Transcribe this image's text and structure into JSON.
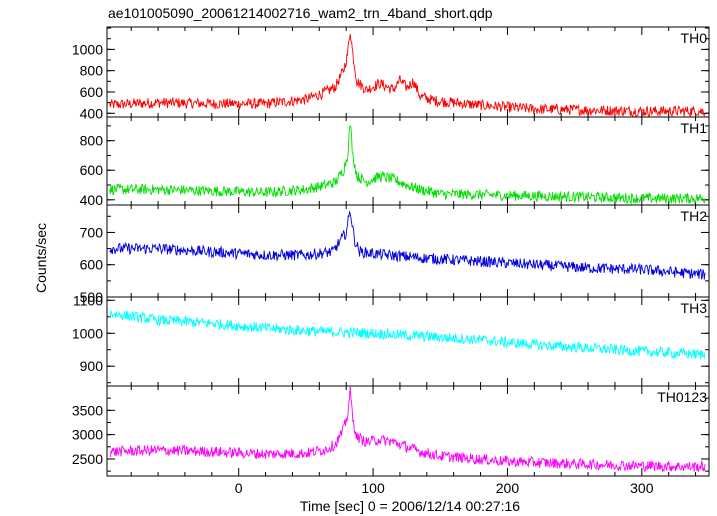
{
  "figure": {
    "title": "ae101005090_20061214002716_wam2_trn_4band_short.qdp",
    "xlabel": "Time [sec] 0 = 2006/12/14 00:27:16",
    "ylabel": "Counts/sec"
  },
  "chart_data": [
    {
      "type": "line",
      "panel_label": "TH0",
      "color": "#ff0000",
      "xlim": [
        -98,
        350
      ],
      "ylim": [
        365,
        1210
      ],
      "yticks": [
        400,
        600,
        800,
        1000
      ],
      "grid": false,
      "series": [
        {
          "x": [
            -95,
            -60,
            -20,
            20,
            50,
            65,
            72,
            78,
            81,
            83,
            85,
            88,
            95,
            105,
            115,
            120,
            125,
            130,
            135,
            145,
            175,
            220,
            260,
            300,
            345
          ],
          "y": [
            480,
            500,
            490,
            490,
            530,
            600,
            650,
            800,
            950,
            1180,
            950,
            700,
            620,
            680,
            620,
            710,
            640,
            700,
            560,
            520,
            480,
            440,
            430,
            420,
            420
          ]
        }
      ]
    },
    {
      "type": "line",
      "panel_label": "TH1",
      "color": "#00e000",
      "xlim": [
        -98,
        350
      ],
      "ylim": [
        365,
        960
      ],
      "yticks": [
        400,
        600,
        800
      ],
      "grid": false,
      "series": [
        {
          "x": [
            -95,
            -60,
            -20,
            20,
            50,
            65,
            72,
            78,
            81,
            83,
            85,
            88,
            95,
            105,
            115,
            125,
            135,
            150,
            200,
            250,
            300,
            345
          ],
          "y": [
            470,
            470,
            460,
            450,
            470,
            500,
            520,
            600,
            700,
            920,
            700,
            560,
            520,
            560,
            540,
            500,
            470,
            440,
            430,
            420,
            410,
            410
          ]
        }
      ]
    },
    {
      "type": "line",
      "panel_label": "TH2",
      "color": "#0000e0",
      "xlim": [
        -98,
        350
      ],
      "ylim": [
        500,
        785
      ],
      "yticks": [
        500,
        600,
        700
      ],
      "grid": false,
      "series": [
        {
          "x": [
            -95,
            -60,
            -20,
            20,
            50,
            70,
            80,
            83,
            86,
            90,
            110,
            140,
            180,
            220,
            260,
            300,
            345
          ],
          "y": [
            650,
            650,
            640,
            630,
            630,
            640,
            700,
            770,
            680,
            640,
            630,
            620,
            610,
            600,
            590,
            585,
            570
          ]
        }
      ]
    },
    {
      "type": "line",
      "panel_label": "TH3",
      "color": "#00ffff",
      "xlim": [
        -98,
        350
      ],
      "ylim": [
        840,
        1110
      ],
      "yticks": [
        900,
        1000,
        1100
      ],
      "grid": false,
      "series": [
        {
          "x": [
            -95,
            -60,
            -20,
            20,
            60,
            100,
            140,
            180,
            220,
            260,
            300,
            345
          ],
          "y": [
            1060,
            1040,
            1030,
            1015,
            1005,
            1000,
            990,
            980,
            965,
            955,
            945,
            935
          ]
        }
      ]
    },
    {
      "type": "line",
      "panel_label": "TH0123",
      "color": "#ff00ff",
      "xlim": [
        -98,
        350
      ],
      "ylim": [
        2150,
        4000
      ],
      "yticks": [
        2500,
        3000,
        3500
      ],
      "grid": false,
      "series": [
        {
          "x": [
            -95,
            -60,
            -20,
            20,
            50,
            65,
            72,
            78,
            81,
            83,
            85,
            88,
            95,
            105,
            115,
            125,
            135,
            150,
            200,
            250,
            300,
            345
          ],
          "y": [
            2650,
            2680,
            2650,
            2600,
            2620,
            2700,
            2800,
            3100,
            3400,
            3900,
            3300,
            2950,
            2850,
            2900,
            2850,
            2750,
            2650,
            2560,
            2450,
            2400,
            2360,
            2340
          ]
        }
      ]
    }
  ],
  "xaxis": {
    "ticks": [
      0,
      100,
      200,
      300
    ]
  }
}
